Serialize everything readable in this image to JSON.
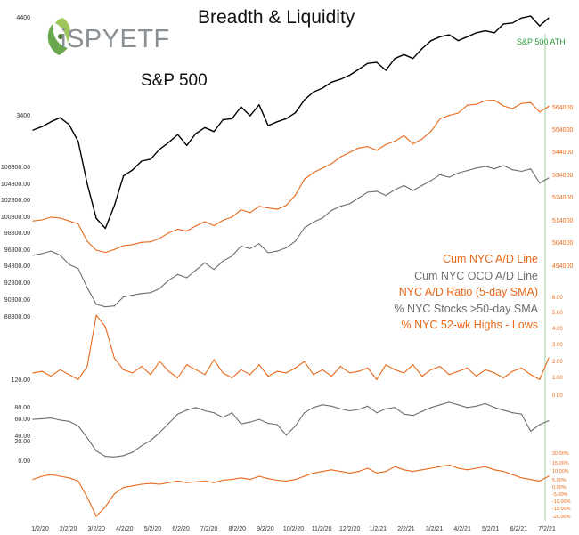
{
  "title": "Breadth & Liquidity",
  "logo": {
    "text": "iSPYETF",
    "icon": "leaf-swirl-logo"
  },
  "subtitle": "S&P 500",
  "annotation": "S&P 500 ATH",
  "colors": {
    "sp500": "#000000",
    "orange": "#e8691b",
    "gray": "#6e6e6e",
    "ath": "#2e9a3c"
  },
  "legend": [
    {
      "label": "Cum NYC A/D Line",
      "color": "#e8691b"
    },
    {
      "label": "Cum NYC OCO A/D Line",
      "color": "#6e6e6e"
    },
    {
      "label": "NYC A/D Ratio (5-day SMA)",
      "color": "#e8691b"
    },
    {
      "label": "% NYC Stocks >50-day SMA",
      "color": "#6e6e6e"
    },
    {
      "label": "% NYC 52-wk Highs - Lows",
      "color": "#e8691b"
    }
  ],
  "chart_data": {
    "type": "line",
    "x_ticks": [
      "1/2/20",
      "2/2/20",
      "3/2/20",
      "4/2/20",
      "5/2/20",
      "6/2/20",
      "7/2/20",
      "8/2/20",
      "9/2/20",
      "10/2/20",
      "11/2/20",
      "12/2/20",
      "1/2/21",
      "2/2/21",
      "3/2/21",
      "4/2/21",
      "5/2/21",
      "6/2/21",
      "7/2/21"
    ],
    "axes": {
      "sp500_left": [
        "4400",
        "3400"
      ],
      "oco_left": [
        "106800.00",
        "104800.00",
        "102800.00",
        "100800.00",
        "98800.00",
        "96800.00",
        "94800.00",
        "92800.00",
        "90800.00",
        "88800.00"
      ],
      "ad_right": [
        "564000",
        "554000",
        "544000",
        "534000",
        "524000",
        "514000",
        "504000",
        "494000"
      ],
      "ratio_right": [
        "6.00",
        "5.00",
        "4.00",
        "3.00",
        "2.00",
        "1.00",
        "0.00"
      ],
      "ratio_left": [
        "120.00"
      ],
      "pct50_left": [
        "80.00",
        "60.00",
        "40.00",
        "20.00",
        "0.00"
      ],
      "hl_right": [
        "20.00%",
        "15.00%",
        "10.00%",
        "5.00%",
        "0.00%",
        "-5.00%",
        "-10.00%",
        "-15.00%",
        "-20.00%"
      ]
    },
    "series": [
      {
        "name": "S&P 500",
        "unit": "index",
        "values": [
          3245,
          3280,
          3330,
          3370,
          3300,
          3130,
          2700,
          2350,
          2250,
          2480,
          2780,
          2840,
          2930,
          2950,
          3050,
          3120,
          3200,
          3090,
          3210,
          3270,
          3230,
          3350,
          3360,
          3480,
          3390,
          3500,
          3290,
          3330,
          3360,
          3420,
          3550,
          3630,
          3670,
          3730,
          3760,
          3800,
          3860,
          3920,
          3930,
          3850,
          3970,
          4010,
          3970,
          4070,
          4150,
          4190,
          4210,
          4150,
          4190,
          4230,
          4250,
          4230,
          4320,
          4330,
          4380,
          4400,
          4300,
          4380
        ]
      },
      {
        "name": "Cum NYC A/D Line",
        "unit": "count",
        "values": [
          514500,
          515000,
          516200,
          515800,
          514500,
          513200,
          505500,
          501500,
          500500,
          501800,
          503500,
          504000,
          505000,
          505200,
          506800,
          509200,
          510800,
          510000,
          512300,
          514200,
          512400,
          514800,
          516200,
          519500,
          518200,
          521000,
          520300,
          519700,
          521500,
          526000,
          533000,
          536000,
          538000,
          540000,
          543000,
          545000,
          547000,
          547600,
          546000,
          548500,
          550000,
          552500,
          548800,
          551000,
          554400,
          560000,
          561500,
          562500,
          566000,
          566400,
          568000,
          568200,
          565700,
          564500,
          566800,
          567200,
          563000,
          565500
        ]
      },
      {
        "name": "Cum NYC OCO A/D Line",
        "unit": "count",
        "values": [
          96000,
          96200,
          96500,
          96000,
          94900,
          94400,
          92100,
          90100,
          89800,
          89900,
          91000,
          91200,
          91400,
          91500,
          92000,
          93000,
          93700,
          93300,
          94200,
          95100,
          94300,
          95300,
          95900,
          97100,
          96800,
          97400,
          96300,
          96500,
          96900,
          97700,
          99300,
          100000,
          100500,
          101400,
          101900,
          102200,
          102900,
          103600,
          103700,
          103200,
          103900,
          104400,
          103800,
          104400,
          105000,
          105700,
          105400,
          105900,
          106200,
          106500,
          106700,
          106400,
          106800,
          106300,
          106100,
          106400,
          104700,
          105300
        ]
      },
      {
        "name": "NYC A/D Ratio (5-day SMA)",
        "unit": "ratio",
        "values": [
          1.3,
          1.4,
          1.1,
          1.5,
          1.2,
          0.9,
          1.7,
          4.8,
          4.1,
          2.2,
          1.5,
          1.3,
          1.7,
          1.2,
          2.0,
          1.4,
          1.0,
          1.8,
          1.5,
          1.2,
          2.1,
          1.3,
          1.0,
          1.5,
          1.2,
          1.8,
          1.1,
          1.4,
          1.3,
          1.6,
          2.0,
          1.2,
          1.5,
          1.1,
          1.7,
          1.3,
          1.4,
          1.6,
          0.9,
          1.8,
          1.5,
          1.3,
          1.8,
          1.1,
          1.5,
          1.7,
          1.2,
          1.4,
          1.6,
          1.1,
          1.5,
          1.3,
          1.0,
          1.4,
          1.6,
          1.2,
          0.9,
          2.2
        ]
      },
      {
        "name": "% NYC Stocks >50-day SMA",
        "unit": "percent",
        "values": [
          62,
          63,
          64,
          61,
          59,
          52,
          34,
          14,
          6,
          5,
          7,
          12,
          22,
          30,
          42,
          56,
          70,
          76,
          80,
          75,
          72,
          65,
          72,
          55,
          58,
          62,
          56,
          54,
          38,
          52,
          72,
          80,
          84,
          82,
          78,
          75,
          77,
          82,
          72,
          78,
          80,
          70,
          68,
          74,
          80,
          84,
          88,
          84,
          80,
          82,
          86,
          80,
          76,
          72,
          70,
          44,
          54,
          60
        ]
      },
      {
        "name": "% NYC 52-wk Highs - Lows",
        "unit": "percent",
        "values": [
          3,
          5,
          6,
          5,
          4,
          2,
          -8,
          -20,
          -14,
          -6,
          -2,
          -1,
          0,
          0.5,
          0,
          1,
          2,
          1,
          1.5,
          2,
          1,
          2.5,
          3,
          4,
          3,
          5,
          3.5,
          2.5,
          2,
          3,
          5,
          7,
          8,
          9,
          8,
          7,
          8,
          10,
          7,
          8,
          11,
          9,
          8,
          9,
          10,
          11,
          12,
          10,
          9,
          10,
          11,
          9,
          8,
          6,
          4,
          3,
          2,
          5
        ]
      }
    ]
  }
}
